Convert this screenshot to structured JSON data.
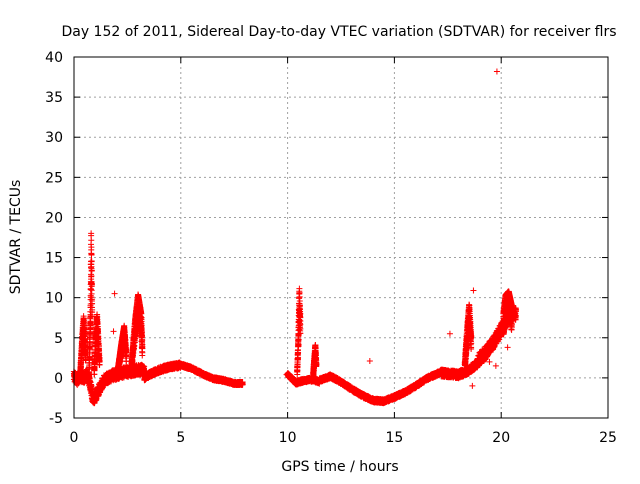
{
  "chart_data": {
    "type": "scatter",
    "title": "Day 152 of 2011, Sidereal Day-to-day VTEC variation (SDTVAR) for receiver flrs",
    "xlabel": "GPS time / hours",
    "ylabel": "SDTVAR / TECUs",
    "xlim": [
      0,
      25
    ],
    "ylim": [
      -5,
      40
    ],
    "xticks": [
      0,
      5,
      10,
      15,
      20,
      25
    ],
    "yticks": [
      -5,
      0,
      5,
      10,
      15,
      20,
      25,
      30,
      35,
      40
    ],
    "grid": true,
    "marker": "+",
    "color": "#ff0000",
    "segments": [
      {
        "x0": 0.0,
        "x1": 0.9,
        "points": [
          [
            0.0,
            0.2
          ],
          [
            0.15,
            -0.2
          ],
          [
            0.3,
            0.3
          ],
          [
            0.45,
            0.0
          ],
          [
            0.6,
            0.4
          ],
          [
            0.75,
            -0.6
          ],
          [
            0.9,
            -2.8
          ]
        ],
        "spread": 1.4
      },
      {
        "x0": 0.9,
        "x1": 3.3,
        "points": [
          [
            0.9,
            -2.8
          ],
          [
            1.1,
            -1.8
          ],
          [
            1.4,
            -0.3
          ],
          [
            1.8,
            0.3
          ],
          [
            2.2,
            0.6
          ],
          [
            2.6,
            0.8
          ],
          [
            3.0,
            1.0
          ],
          [
            3.3,
            1.0
          ]
        ],
        "spread": 1.3
      },
      {
        "x0": 3.3,
        "x1": 5.0,
        "points": [
          [
            3.3,
            0.0
          ],
          [
            3.6,
            0.5
          ],
          [
            4.0,
            1.0
          ],
          [
            4.5,
            1.4
          ],
          [
            5.0,
            1.6
          ]
        ],
        "spread": 0.7
      },
      {
        "x0": 5.0,
        "x1": 7.9,
        "points": [
          [
            5.0,
            1.6
          ],
          [
            5.5,
            1.2
          ],
          [
            6.0,
            0.5
          ],
          [
            6.5,
            -0.1
          ],
          [
            7.0,
            -0.3
          ],
          [
            7.5,
            -0.7
          ],
          [
            7.9,
            -0.7
          ]
        ],
        "spread": 0.4
      },
      {
        "x0": 10.0,
        "x1": 11.5,
        "points": [
          [
            10.0,
            0.4
          ],
          [
            10.4,
            -0.6
          ],
          [
            10.8,
            -0.3
          ],
          [
            11.2,
            -0.2
          ],
          [
            11.5,
            -0.5
          ]
        ],
        "spread": 0.5
      },
      {
        "x0": 11.5,
        "x1": 15.0,
        "points": [
          [
            11.5,
            -0.3
          ],
          [
            12.0,
            0.2
          ],
          [
            12.5,
            -0.5
          ],
          [
            13.0,
            -1.4
          ],
          [
            13.5,
            -2.2
          ],
          [
            14.0,
            -2.8
          ],
          [
            14.5,
            -2.9
          ],
          [
            15.0,
            -2.4
          ]
        ],
        "spread": 0.5
      },
      {
        "x0": 15.0,
        "x1": 17.2,
        "points": [
          [
            15.0,
            -2.4
          ],
          [
            15.5,
            -1.8
          ],
          [
            16.0,
            -1.0
          ],
          [
            16.5,
            -0.1
          ],
          [
            17.0,
            0.5
          ],
          [
            17.2,
            0.8
          ]
        ],
        "spread": 0.5
      },
      {
        "x0": 17.2,
        "x1": 18.9,
        "points": [
          [
            17.2,
            0.6
          ],
          [
            17.6,
            0.5
          ],
          [
            18.0,
            0.4
          ],
          [
            18.4,
            0.8
          ],
          [
            18.9,
            1.8
          ]
        ],
        "spread": 0.9
      },
      {
        "x0": 18.9,
        "x1": 20.7,
        "points": [
          [
            18.9,
            2.2
          ],
          [
            19.3,
            3.2
          ],
          [
            19.7,
            4.6
          ],
          [
            20.1,
            6.5
          ],
          [
            20.4,
            7.8
          ],
          [
            20.7,
            8.0
          ]
        ],
        "spread": 1.6
      }
    ],
    "spikes": [
      {
        "x0": 0.7,
        "x1": 0.85,
        "points": [
          [
            0.7,
            0.0
          ],
          [
            0.78,
            10.0
          ],
          [
            0.8,
            18.3
          ],
          [
            0.83,
            14.0
          ],
          [
            0.85,
            8.0
          ]
        ]
      },
      {
        "x0": 0.3,
        "x1": 0.55,
        "points": [
          [
            0.3,
            1.0
          ],
          [
            0.38,
            5.0
          ],
          [
            0.45,
            7.7
          ],
          [
            0.55,
            3.0
          ]
        ]
      },
      {
        "x0": 0.95,
        "x1": 1.2,
        "points": [
          [
            0.95,
            1.0
          ],
          [
            1.02,
            6.0
          ],
          [
            1.08,
            8.0
          ],
          [
            1.2,
            2.0
          ]
        ]
      },
      {
        "x0": 2.05,
        "x1": 2.45,
        "points": [
          [
            2.05,
            1.0
          ],
          [
            2.2,
            4.0
          ],
          [
            2.35,
            6.5
          ],
          [
            2.45,
            3.0
          ]
        ]
      },
      {
        "x0": 2.7,
        "x1": 3.2,
        "points": [
          [
            2.7,
            2.0
          ],
          [
            2.85,
            7.0
          ],
          [
            3.0,
            10.4
          ],
          [
            3.15,
            8.0
          ],
          [
            3.2,
            4.0
          ]
        ]
      },
      {
        "x0": 10.45,
        "x1": 10.6,
        "points": [
          [
            10.45,
            1.0
          ],
          [
            10.5,
            5.0
          ],
          [
            10.55,
            11.3
          ],
          [
            10.6,
            7.0
          ]
        ]
      },
      {
        "x0": 11.2,
        "x1": 11.35,
        "points": [
          [
            11.2,
            0.5
          ],
          [
            11.25,
            2.5
          ],
          [
            11.3,
            4.2
          ],
          [
            11.35,
            1.5
          ]
        ]
      },
      {
        "x0": 18.3,
        "x1": 18.6,
        "points": [
          [
            18.3,
            2.0
          ],
          [
            18.4,
            6.0
          ],
          [
            18.5,
            9.2
          ],
          [
            18.6,
            5.0
          ]
        ]
      },
      {
        "x0": 20.1,
        "x1": 20.5,
        "points": [
          [
            20.1,
            8.0
          ],
          [
            20.2,
            10.3
          ],
          [
            20.35,
            10.8
          ],
          [
            20.5,
            9.0
          ]
        ]
      }
    ],
    "outliers": [
      [
        1.9,
        10.5
      ],
      [
        1.85,
        5.8
      ],
      [
        9.95,
        0.4
      ],
      [
        13.85,
        2.1
      ],
      [
        17.6,
        5.5
      ],
      [
        18.7,
        10.9
      ],
      [
        18.65,
        -1.0
      ],
      [
        19.45,
        2.0
      ],
      [
        19.75,
        1.5
      ],
      [
        19.8,
        38.2
      ],
      [
        20.3,
        3.8
      ]
    ]
  }
}
